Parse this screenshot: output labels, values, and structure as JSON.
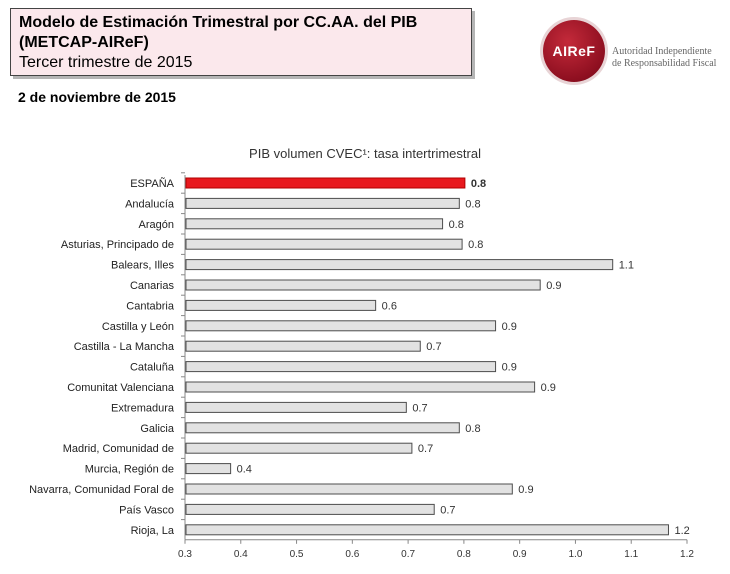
{
  "header": {
    "title_line1": "Modelo de Estimación Trimestral por CC.AA. del PIB",
    "title_line2": "(METCAP-AIReF)",
    "subtitle": "Tercer trimestre de 2015",
    "date": "2 de noviembre de 2015"
  },
  "logo": {
    "mark": "AIReF",
    "text_line1": "Autoridad Independiente",
    "text_line2": "de Responsabilidad Fiscal"
  },
  "chart_data": {
    "type": "bar",
    "orientation": "horizontal",
    "title": "PIB volumen CVEC¹: tasa intertrimestral",
    "categories": [
      "ESPAÑA",
      "Andalucía",
      "Aragón",
      "Asturias, Principado de",
      "Balears, Illes",
      "Canarias",
      "Cantabria",
      "Castilla y León",
      "Castilla - La Mancha",
      "Cataluña",
      "Comunitat Valenciana",
      "Extremadura",
      "Galicia",
      "Madrid, Comunidad de",
      "Murcia, Región de",
      "Navarra, Comunidad Foral de",
      "País Vasco",
      "Rioja, La"
    ],
    "values": [
      0.8,
      0.79,
      0.76,
      0.795,
      1.065,
      0.935,
      0.64,
      0.855,
      0.72,
      0.855,
      0.925,
      0.695,
      0.79,
      0.705,
      0.38,
      0.885,
      0.745,
      1.165
    ],
    "value_labels": [
      "0.8",
      "0.8",
      "0.8",
      "0.8",
      "1.1",
      "0.9",
      "0.6",
      "0.9",
      "0.7",
      "0.9",
      "0.9",
      "0.7",
      "0.8",
      "0.7",
      "0.4",
      "0.9",
      "0.7",
      "1.2"
    ],
    "xlim": [
      0.3,
      1.2
    ],
    "xticks": [
      "0.3",
      "0.4",
      "0.5",
      "0.6",
      "0.7",
      "0.8",
      "0.9",
      "1.0",
      "1.1",
      "1.2"
    ],
    "highlight_index": 0,
    "colors": {
      "highlight": "#e8191e",
      "bar": "#e2e2e2",
      "bar_border": "#4d4d4d",
      "highlight_label": "#e8191e"
    },
    "grid": false
  }
}
